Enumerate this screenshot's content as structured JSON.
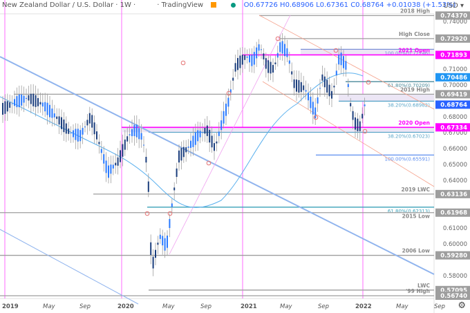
{
  "header": {
    "title": "New Zealand Dollar / U.S. Dollar · 1W ·",
    "source": "· TradingView",
    "ohlc": "O0.67726 H0.68906 L0.67361 C0.68764 +0.01038 (+1.53%)",
    "currency_button": "USD ▾"
  },
  "chart_data": {
    "type": "candlestick",
    "title": "New Zealand Dollar / U.S. Dollar · 1W",
    "last": {
      "open": 0.67726,
      "high": 0.68906,
      "low": 0.67361,
      "close": 0.68764,
      "change": 0.01038,
      "change_pct": 1.53
    },
    "x_ticks": [
      "2019",
      "May",
      "Sep",
      "2020",
      "May",
      "Sep",
      "2021",
      "May",
      "Sep",
      "2022",
      "May",
      "Sep"
    ],
    "y_ticks": [
      0.74,
      0.71,
      0.7,
      0.68,
      0.67,
      0.66,
      0.65,
      0.64,
      0.61,
      0.6,
      0.58
    ],
    "ylim": [
      0.5674,
      0.745
    ],
    "levels": [
      {
        "label": "2018 High",
        "value": 0.7437,
        "color": "#9e9e9e"
      },
      {
        "label": "High Close",
        "value": 0.7292,
        "color": "#9e9e9e"
      },
      {
        "label": "100.00%(0.72246)",
        "value": 0.72246,
        "color": "#7b8fd6"
      },
      {
        "label": "2021 Open",
        "value": 0.71893,
        "color": "#ff00ff"
      },
      {
        "label": "61.80%(0.70209)",
        "value": 0.70209,
        "color": "#4a8a9a"
      },
      {
        "label": "2019 High",
        "value": 0.69419,
        "color": "#9e9e9e"
      },
      {
        "label": "38.20%(0.68982)",
        "value": 0.68982,
        "color": "#5aa5c8"
      },
      {
        "label": "2020 Open",
        "value": 0.67334,
        "color": "#ff00ff"
      },
      {
        "label": "38.20%(0.67023)",
        "value": 0.67023,
        "color": "#5aa5c8"
      },
      {
        "label": "100.00%(0.65591)",
        "value": 0.65591,
        "color": "#5b8def"
      },
      {
        "label": "2019 LWC",
        "value": 0.63136,
        "color": "#9e9e9e"
      },
      {
        "label": "61.80%(0.62313)",
        "value": 0.62313,
        "color": "#3aa0b8"
      },
      {
        "label": "2015 Low",
        "value": 0.61968,
        "color": "#9e9e9e"
      },
      {
        "label": "2006 Low",
        "value": 0.5928,
        "color": "#9e9e9e"
      },
      {
        "label": "LWC",
        "value": 0.57095,
        "color": "#9e9e9e"
      },
      {
        "label": "'99 High",
        "value": 0.5674,
        "color": "#9e9e9e"
      }
    ],
    "price_tags": [
      {
        "value": "0.74370",
        "bg": "#9e9e9e"
      },
      {
        "value": "0.72920",
        "bg": "#9e9e9e"
      },
      {
        "value": "0.71893",
        "bg": "#ff00ff"
      },
      {
        "value": "0.70486",
        "bg": "#2196f3"
      },
      {
        "value": "0.69419",
        "bg": "#9e9e9e"
      },
      {
        "value": "0.68764",
        "bg": "#2962ff"
      },
      {
        "value": "0.67334",
        "bg": "#ff00ff"
      },
      {
        "value": "0.63136",
        "bg": "#9e9e9e"
      },
      {
        "value": "0.61968",
        "bg": "#9e9e9e"
      },
      {
        "value": "0.59280",
        "bg": "#9e9e9e"
      },
      {
        "value": "0.57095",
        "bg": "#9e9e9e"
      },
      {
        "value": "0.56740",
        "bg": "#9e9e9e"
      }
    ],
    "moving_average": "52-week SMA (light blue, value 0.70486)"
  }
}
